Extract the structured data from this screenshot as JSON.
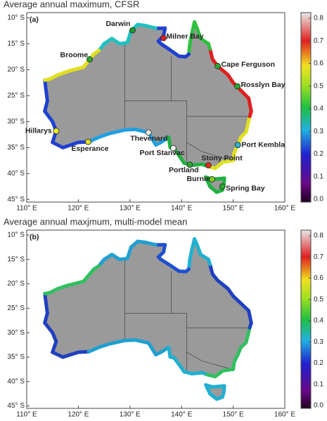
{
  "panels": [
    {
      "label": "(a)",
      "title": "Average annual maximum, CFSR",
      "stations": [
        {
          "name": "Darwin",
          "lon": 130.5,
          "lat": -12.4,
          "color": "#1a9a2a"
        },
        {
          "name": "Milner Bay",
          "lon": 136.5,
          "lat": -13.9,
          "color": "#e02020"
        },
        {
          "name": "Broome",
          "lon": 122.2,
          "lat": -18,
          "color": "#2aa830"
        },
        {
          "name": "Cape Ferguson",
          "lon": 147,
          "lat": -19.3,
          "color": "#2aa830"
        },
        {
          "name": "Rosslyn Bay",
          "lon": 150.8,
          "lat": -23.2,
          "color": "#2aa830"
        },
        {
          "name": "Hillarys",
          "lon": 115.7,
          "lat": -31.8,
          "color": "#f0f020"
        },
        {
          "name": "Esperance",
          "lon": 121.9,
          "lat": -33.9,
          "color": "#e0e020"
        },
        {
          "name": "Thevenard",
          "lon": 133.6,
          "lat": -32.1,
          "color": "#e8e8e8"
        },
        {
          "name": "Port Stanvac",
          "lon": 138.4,
          "lat": -35.1,
          "color": "#f0f0f0"
        },
        {
          "name": "Stony Point",
          "lon": 145.2,
          "lat": -38.4,
          "color": "#e03020"
        },
        {
          "name": "Port Kembla",
          "lon": 150.9,
          "lat": -34.5,
          "color": "#30b0d0"
        },
        {
          "name": "Portland",
          "lon": 141.6,
          "lat": -38.3,
          "color": "#2aa830"
        },
        {
          "name": "Burnie",
          "lon": 145.9,
          "lat": -41.1,
          "color": "#80d020"
        },
        {
          "name": "Spring Bay",
          "lon": 147.9,
          "lat": -42.5,
          "color": "#2aa830"
        }
      ]
    },
    {
      "label": "(b)",
      "title": "Average annual maxjmum, multi-model mean"
    }
  ],
  "map": {
    "xlim": [
      110,
      160
    ],
    "ylim": [
      -45.5,
      -9
    ],
    "xticks": [
      {
        "value": 110,
        "label": "110° E"
      },
      {
        "value": 120,
        "label": "120° E"
      },
      {
        "value": 130,
        "label": "130° E"
      },
      {
        "value": 140,
        "label": "140° E"
      },
      {
        "value": 150,
        "label": "150° E"
      },
      {
        "value": 160,
        "label": "160° E"
      }
    ],
    "yticks": [
      {
        "value": -10,
        "label": "10° S"
      },
      {
        "value": -15,
        "label": "15° S"
      },
      {
        "value": -20,
        "label": "20° S"
      },
      {
        "value": -25,
        "label": "25° S"
      },
      {
        "value": -30,
        "label": "30° S"
      },
      {
        "value": -35,
        "label": "35° S"
      },
      {
        "value": -40,
        "label": "40° S"
      },
      {
        "value": -45,
        "label": "45° S"
      }
    ]
  },
  "colorbar": {
    "lim": [
      0,
      0.8
    ],
    "ticks": [
      {
        "value": 0,
        "label": "0.0"
      },
      0.1,
      0.2,
      0.3,
      0.4,
      0.5,
      0.6,
      0.7,
      0.8
    ]
  }
}
